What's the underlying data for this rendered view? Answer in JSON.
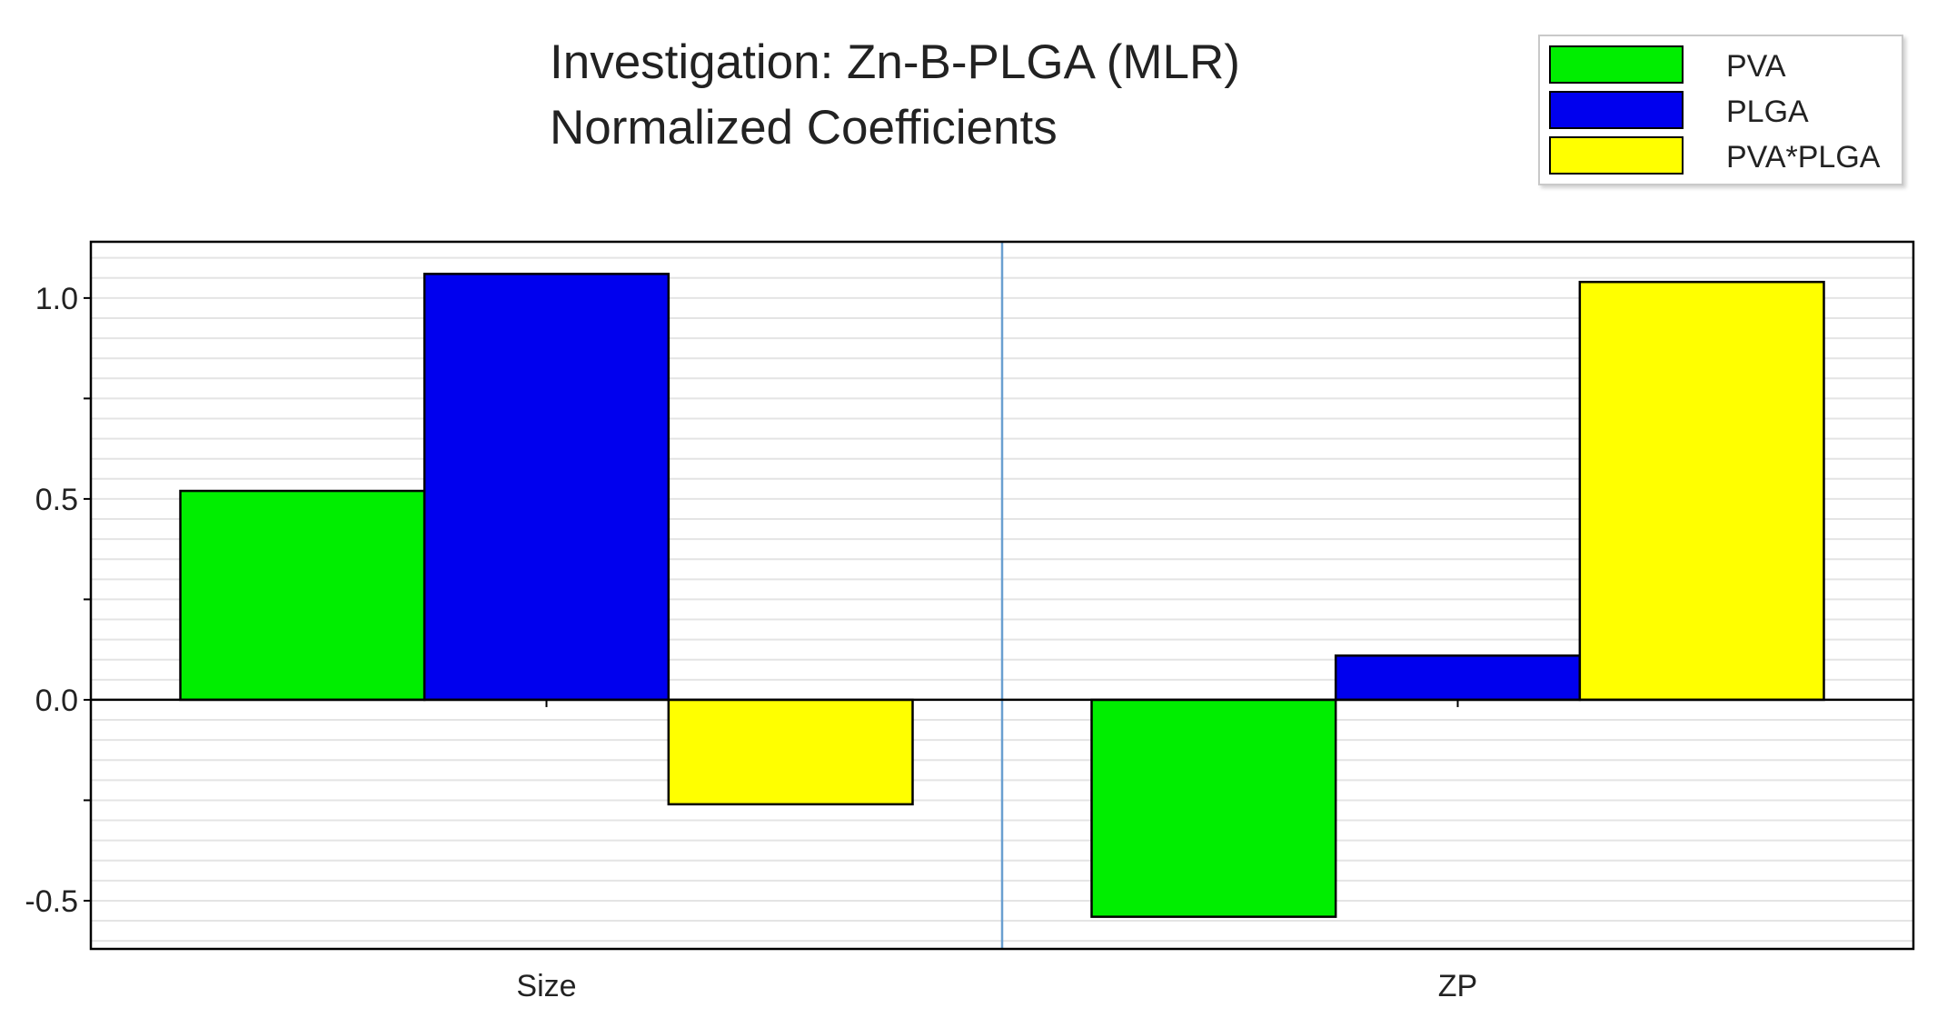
{
  "title": "Investigation: Zn-B-PLGA (MLR)",
  "subtitle": "Normalized Coefficients",
  "chart_data": {
    "type": "bar",
    "title": "Investigation: Zn-B-PLGA (MLR)",
    "subtitle": "Normalized Coefficients",
    "categories": [
      "Size",
      "ZP"
    ],
    "series": [
      {
        "name": "PVA",
        "color": "#00ee00",
        "values": [
          0.52,
          -0.54
        ]
      },
      {
        "name": "PLGA",
        "color": "#0000ee",
        "values": [
          1.06,
          0.11
        ]
      },
      {
        "name": "PVA*PLGA",
        "color": "#ffff00",
        "values": [
          -0.26,
          1.04
        ]
      }
    ],
    "yticks": [
      1.0,
      0.5,
      0.0,
      -0.5
    ],
    "ytick_labels": [
      "1.0",
      "0.5",
      "0.0",
      "-0.5"
    ],
    "ylim": [
      -0.62,
      1.14
    ],
    "xlabel": "",
    "ylabel": "",
    "grid": true,
    "legend_position": "top-right"
  }
}
